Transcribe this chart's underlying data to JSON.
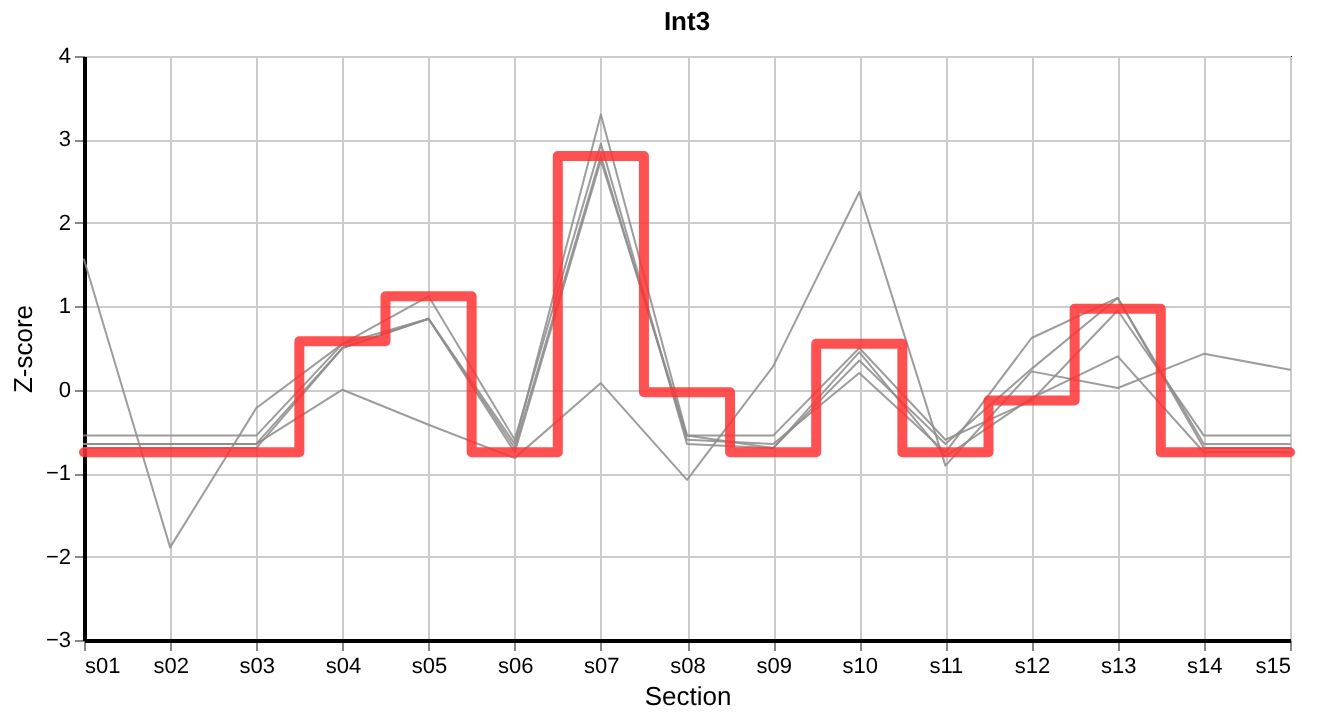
{
  "chart_data": {
    "type": "line",
    "title": "Int3",
    "xlabel": "Section",
    "ylabel": "Z-score",
    "categories": [
      "s01",
      "s02",
      "s03",
      "s04",
      "s05",
      "s06",
      "s07",
      "s08",
      "s09",
      "s10",
      "s11",
      "s12",
      "s13",
      "s14",
      "s15"
    ],
    "series": [
      {
        "color": "#8c8c8c",
        "values": [
          1.56,
          -1.89,
          -0.22,
          0.55,
          0.85,
          -0.65,
          3.3,
          -0.55,
          -0.55,
          0.5,
          -0.6,
          -0.13,
          0.95,
          -0.55,
          -0.55
        ]
      },
      {
        "color": "#8c8c8c",
        "values": [
          -0.55,
          -0.55,
          -0.55,
          0.55,
          1.12,
          -0.6,
          2.95,
          -0.65,
          -0.7,
          0.35,
          -0.65,
          0.25,
          1.1,
          -0.65,
          -0.65
        ]
      },
      {
        "color": "#8c8c8c",
        "values": [
          -0.65,
          -0.65,
          -0.65,
          0.5,
          0.85,
          -0.7,
          2.8,
          -0.6,
          -0.65,
          0.2,
          -0.75,
          0.62,
          1.1,
          -0.7,
          -0.7
        ]
      },
      {
        "color": "#8c8c8c",
        "values": [
          -0.65,
          -0.65,
          -0.65,
          0.0,
          -0.42,
          -0.82,
          0.08,
          -1.08,
          0.28,
          2.37,
          -0.91,
          0.22,
          0.02,
          0.43,
          0.24
        ]
      },
      {
        "color": "#8c8c8c",
        "values": [
          -0.7,
          -0.7,
          -0.7,
          0.5,
          0.85,
          -0.75,
          2.75,
          -0.55,
          -0.7,
          0.45,
          -0.8,
          -0.1,
          0.4,
          -0.75,
          -0.75
        ]
      },
      {
        "type": "step",
        "color": "#ff3333",
        "values": [
          -0.75,
          -0.75,
          -0.75,
          0.58,
          1.12,
          -0.75,
          2.8,
          -0.03,
          -0.75,
          0.55,
          -0.75,
          -0.13,
          0.97,
          -0.75,
          -0.75
        ]
      }
    ],
    "ylim": [
      -3,
      4
    ],
    "yticks": [
      -3,
      -2,
      -1,
      0,
      1,
      2,
      3,
      4
    ],
    "grid": true
  }
}
